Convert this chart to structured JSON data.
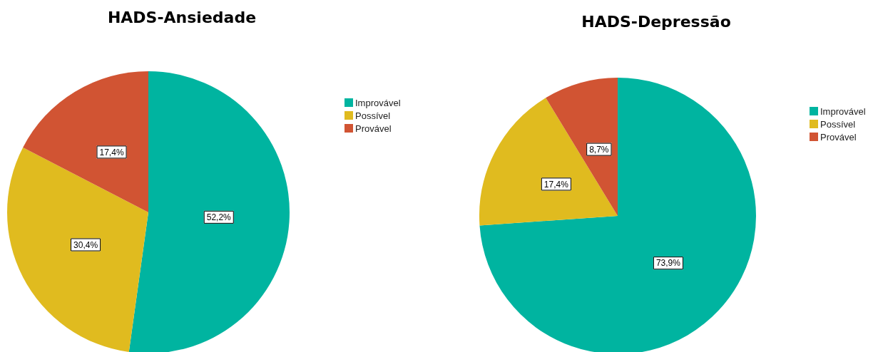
{
  "chart_data": [
    {
      "type": "pie",
      "title": "HADS-Ansiedade",
      "categories": [
        "Improvável",
        "Possível",
        "Provável"
      ],
      "values": [
        52.2,
        30.4,
        17.4
      ],
      "value_labels": [
        "52,2%",
        "30,4%",
        "17,4%"
      ],
      "colors": [
        "#00b4a0",
        "#e0bb1f",
        "#d15433"
      ],
      "legend": "right"
    },
    {
      "type": "pie",
      "title": "HADS-Depressão",
      "categories": [
        "Improvável",
        "Possível",
        "Provável"
      ],
      "values": [
        73.9,
        17.4,
        8.7
      ],
      "value_labels": [
        "73,9%",
        "17,4%",
        "8,7%"
      ],
      "colors": [
        "#00b4a0",
        "#e0bb1f",
        "#d15433"
      ],
      "legend": "right"
    }
  ]
}
